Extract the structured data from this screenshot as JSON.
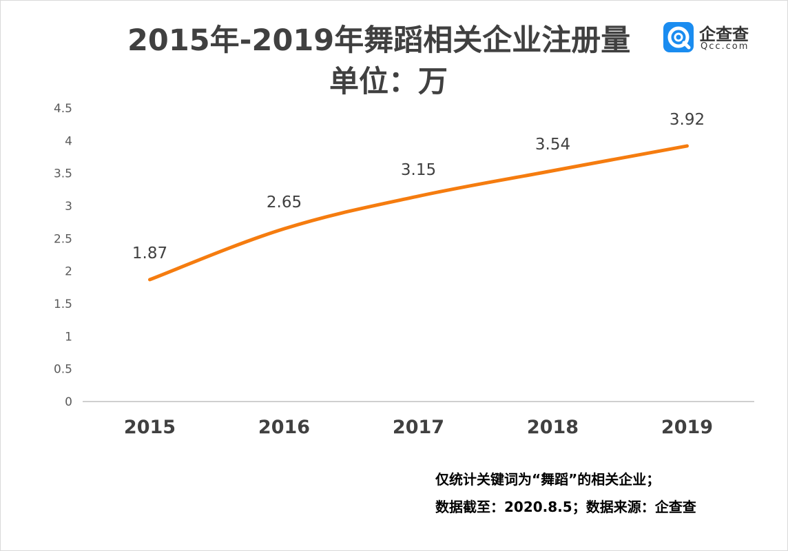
{
  "title": "2015年-2019年舞蹈相关企业注册量",
  "subtitle": "单位：万",
  "logo": {
    "name": "企查查",
    "sub": "Qcc.com",
    "icon": "qcc-logo-icon",
    "color": "#1a8cf0"
  },
  "notes": [
    "仅统计关键词为“舞蹈”的相关企业；",
    "数据截至：2020.8.5；数据来源：企查查"
  ],
  "colors": {
    "line": "#f57c0f",
    "axis": "#bfbfbf",
    "text": "#404040"
  },
  "chart_data": {
    "type": "line",
    "categories": [
      "2015",
      "2016",
      "2017",
      "2018",
      "2019"
    ],
    "values": [
      1.87,
      2.65,
      3.15,
      3.54,
      3.92
    ],
    "data_labels": [
      "1.87",
      "2.65",
      "3.15",
      "3.54",
      "3.92"
    ],
    "yticks": [
      "0",
      "0.5",
      "1",
      "1.5",
      "2",
      "2.5",
      "3",
      "3.5",
      "4",
      "4.5"
    ],
    "ylim": [
      0,
      4.5
    ],
    "grid": false,
    "smooth": true,
    "xlabel": "",
    "ylabel": ""
  }
}
